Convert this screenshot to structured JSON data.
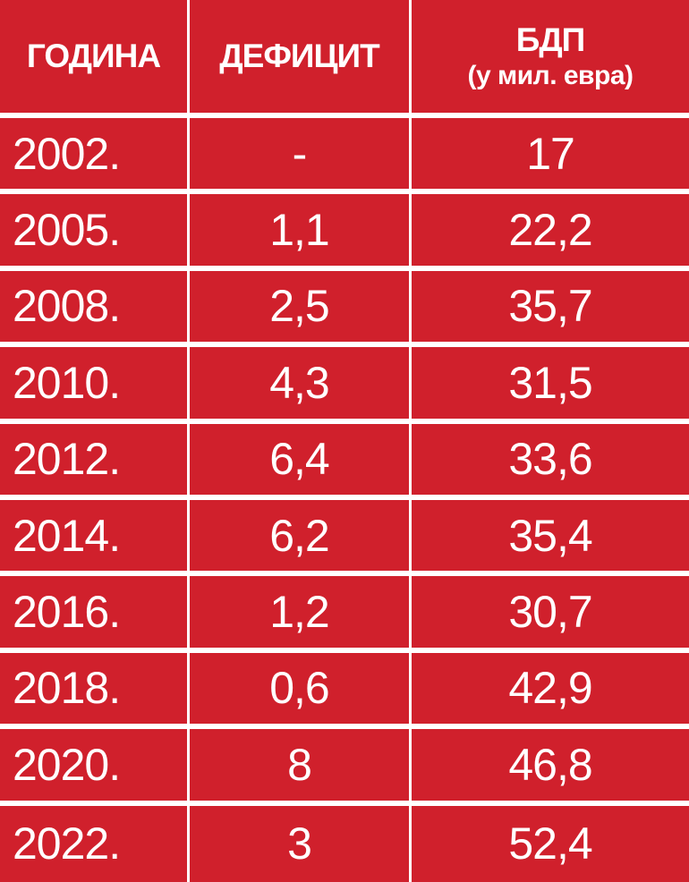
{
  "chart_data": {
    "type": "table",
    "columns": [
      "ГОДИНА",
      "ДЕФИЦИТ",
      "БДП"
    ],
    "column_subtitles": {
      "БДП": "(у мил. евра)"
    },
    "rows": [
      {
        "year": "2002.",
        "deficit": "-",
        "gdp": "17"
      },
      {
        "year": "2005.",
        "deficit": "1,1",
        "gdp": "22,2"
      },
      {
        "year": "2008.",
        "deficit": "2,5",
        "gdp": "35,7"
      },
      {
        "year": "2010.",
        "deficit": "4,3",
        "gdp": "31,5"
      },
      {
        "year": "2012.",
        "deficit": "6,4",
        "gdp": "33,6"
      },
      {
        "year": "2014.",
        "deficit": "6,2",
        "gdp": "35,4"
      },
      {
        "year": "2016.",
        "deficit": "1,2",
        "gdp": "30,7"
      },
      {
        "year": "2018.",
        "deficit": "0,6",
        "gdp": "42,9"
      },
      {
        "year": "2020.",
        "deficit": "8",
        "gdp": "46,8"
      },
      {
        "year": "2022.",
        "deficit": "3",
        "gdp": "52,4"
      }
    ]
  },
  "colors": {
    "cell_background": "#d0202c",
    "text": "#ffffff",
    "grid_lines": "#ffffff"
  }
}
